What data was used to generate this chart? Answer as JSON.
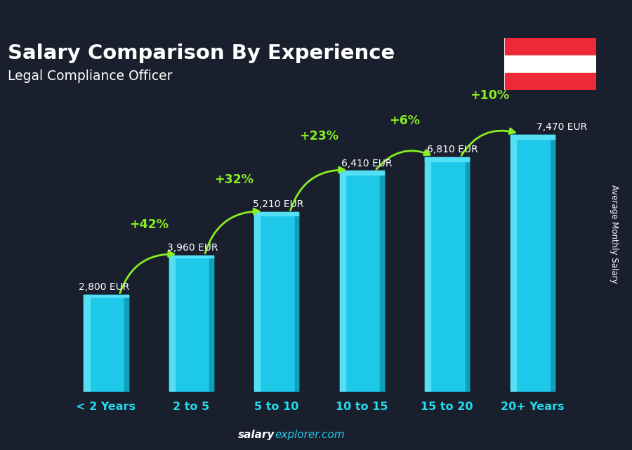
{
  "title": "Salary Comparison By Experience",
  "subtitle": "Legal Compliance Officer",
  "ylabel": "Average Monthly Salary",
  "categories": [
    "< 2 Years",
    "2 to 5",
    "5 to 10",
    "10 to 15",
    "15 to 20",
    "20+ Years"
  ],
  "values": [
    2800,
    3960,
    5210,
    6410,
    6810,
    7470
  ],
  "value_labels": [
    "2,800 EUR",
    "3,960 EUR",
    "5,210 EUR",
    "6,410 EUR",
    "6,810 EUR",
    "7,470 EUR"
  ],
  "pct_changes": [
    "+42%",
    "+32%",
    "+23%",
    "+6%",
    "+10%"
  ],
  "bar_color_main": "#1ec8e8",
  "bar_color_left": "#55dff5",
  "bar_color_right": "#0fa0bb",
  "bg_color": "#1a1f2e",
  "title_color": "#ffffff",
  "subtitle_color": "#ffffff",
  "value_color": "#ffffff",
  "pct_color": "#88ee22",
  "xtick_color": "#22ddee",
  "ylim": [
    0,
    8500
  ],
  "bar_width": 0.52,
  "footer_salary_color": "#ffffff",
  "footer_explorer_color": "#22ccee"
}
